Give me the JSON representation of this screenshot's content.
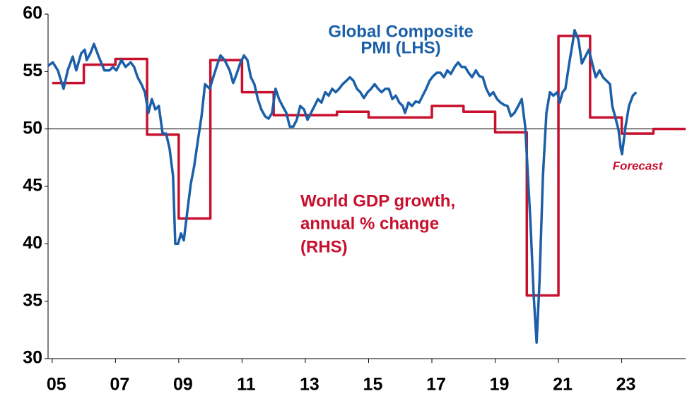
{
  "chart_data": {
    "type": "line",
    "xlim": [
      2004.87,
      2025.02
    ],
    "ylim": [
      30,
      60
    ],
    "yticks": [
      30,
      35,
      40,
      45,
      50,
      55,
      60
    ],
    "xticks": [
      {
        "value": 2005,
        "label": "05"
      },
      {
        "value": 2007,
        "label": "07"
      },
      {
        "value": 2009,
        "label": "09"
      },
      {
        "value": 2011,
        "label": "11"
      },
      {
        "value": 2013,
        "label": "13"
      },
      {
        "value": 2015,
        "label": "15"
      },
      {
        "value": 2017,
        "label": "17"
      },
      {
        "value": 2019,
        "label": "19"
      },
      {
        "value": 2021,
        "label": "21"
      },
      {
        "value": 2023,
        "label": "23"
      }
    ],
    "reference_line": 50,
    "annotations": [
      {
        "text": "Global Composite",
        "color": "#1a5fa8"
      },
      {
        "text": "PMI (LHS)",
        "color": "#1a5fa8"
      },
      {
        "text": "World GDP growth,",
        "color": "#c8102e"
      },
      {
        "text": "annual % change",
        "color": "#c8102e"
      },
      {
        "text": "(RHS)",
        "color": "#c8102e"
      },
      {
        "text": "Forecast",
        "color": "#c8102e"
      }
    ],
    "series": [
      {
        "name": "Global Composite PMI (LHS)",
        "color": "#1a5fa8",
        "x": [
          2004.87,
          2005.02,
          2005.18,
          2005.36,
          2005.49,
          2005.65,
          2005.76,
          2005.92,
          2006.03,
          2006.09,
          2006.21,
          2006.32,
          2006.47,
          2006.65,
          2006.81,
          2006.92,
          2007.03,
          2007.19,
          2007.32,
          2007.48,
          2007.59,
          2007.7,
          2007.82,
          2007.93,
          2008.04,
          2008.15,
          2008.26,
          2008.37,
          2008.49,
          2008.6,
          2008.71,
          2008.82,
          2008.89,
          2008.98,
          2009.07,
          2009.16,
          2009.27,
          2009.38,
          2009.49,
          2009.6,
          2009.72,
          2009.83,
          2009.98,
          2010.09,
          2010.23,
          2010.32,
          2010.45,
          2010.61,
          2010.72,
          2010.83,
          2010.94,
          2011.06,
          2011.17,
          2011.28,
          2011.39,
          2011.5,
          2011.61,
          2011.73,
          2011.84,
          2011.95,
          2012.06,
          2012.17,
          2012.28,
          2012.4,
          2012.51,
          2012.62,
          2012.73,
          2012.84,
          2012.96,
          2013.07,
          2013.18,
          2013.29,
          2013.4,
          2013.51,
          2013.63,
          2013.74,
          2013.85,
          2013.96,
          2014.07,
          2014.18,
          2014.3,
          2014.41,
          2014.52,
          2014.63,
          2014.74,
          2014.85,
          2014.97,
          2015.08,
          2015.19,
          2015.3,
          2015.41,
          2015.53,
          2015.64,
          2015.75,
          2015.86,
          2015.97,
          2016.08,
          2016.15,
          2016.26,
          2016.37,
          2016.49,
          2016.6,
          2016.71,
          2016.82,
          2016.93,
          2017.04,
          2017.16,
          2017.27,
          2017.38,
          2017.49,
          2017.6,
          2017.72,
          2017.83,
          2017.94,
          2018.05,
          2018.16,
          2018.27,
          2018.39,
          2018.5,
          2018.61,
          2018.72,
          2018.83,
          2018.94,
          2019.06,
          2019.17,
          2019.28,
          2019.39,
          2019.5,
          2019.61,
          2019.73,
          2019.84,
          2019.95,
          2020.11,
          2020.22,
          2020.31,
          2020.4,
          2020.51,
          2020.62,
          2020.73,
          2020.84,
          2020.96,
          2021.04,
          2021.13,
          2021.22,
          2021.34,
          2021.45,
          2021.51,
          2021.63,
          2021.74,
          2021.85,
          2021.96,
          2022.07,
          2022.18,
          2022.3,
          2022.41,
          2022.52,
          2022.63,
          2022.7,
          2022.79,
          2022.9,
          2022.97,
          2023.01,
          2023.12,
          2023.23,
          2023.35,
          2023.46
        ],
        "values": [
          55.5,
          55.8,
          55.1,
          53.5,
          55.1,
          56.3,
          55.1,
          56.6,
          56.9,
          56.0,
          56.6,
          57.4,
          56.3,
          55.1,
          55.1,
          55.4,
          55.1,
          56.0,
          55.4,
          55.8,
          55.4,
          54.5,
          53.9,
          53.2,
          51.4,
          52.6,
          51.7,
          52.0,
          49.6,
          49.6,
          48.3,
          45.9,
          40.0,
          40.0,
          40.9,
          40.3,
          42.8,
          45.2,
          46.8,
          48.9,
          51.1,
          53.9,
          53.5,
          54.5,
          55.7,
          56.4,
          56.0,
          55.1,
          54.0,
          54.8,
          55.7,
          56.4,
          56.0,
          54.5,
          53.9,
          52.6,
          51.7,
          51.1,
          50.9,
          51.4,
          53.5,
          52.6,
          52.0,
          51.4,
          50.2,
          50.2,
          50.8,
          52.0,
          51.7,
          50.8,
          51.4,
          52.0,
          52.6,
          52.3,
          53.2,
          52.9,
          53.5,
          53.2,
          53.5,
          53.9,
          54.2,
          54.5,
          54.2,
          53.5,
          53.2,
          52.7,
          53.2,
          53.5,
          53.9,
          53.5,
          53.2,
          53.5,
          53.5,
          52.6,
          52.9,
          52.3,
          52.0,
          51.4,
          52.3,
          52.0,
          52.4,
          52.3,
          52.9,
          53.5,
          54.2,
          54.6,
          54.9,
          54.9,
          54.5,
          55.1,
          54.8,
          55.4,
          55.8,
          55.4,
          55.4,
          54.9,
          54.5,
          55.1,
          54.6,
          54.5,
          53.5,
          52.9,
          53.2,
          52.6,
          52.3,
          52.1,
          52.0,
          51.1,
          51.4,
          52.0,
          52.6,
          50.2,
          42.2,
          35.4,
          31.4,
          36.6,
          45.9,
          51.4,
          53.2,
          52.9,
          53.2,
          52.3,
          53.2,
          53.5,
          55.7,
          57.5,
          58.6,
          57.8,
          55.7,
          56.3,
          56.9,
          55.7,
          54.5,
          55.1,
          54.5,
          54.2,
          53.9,
          52.0,
          51.1,
          49.9,
          48.3,
          47.8,
          50.2,
          52.0,
          52.9,
          53.2
        ]
      },
      {
        "name": "World GDP growth, annual % change (RHS)",
        "color": "#c8102e",
        "step": true,
        "x": [
          2005,
          2006,
          2007,
          2008,
          2009,
          2010,
          2011,
          2012,
          2013,
          2014,
          2015,
          2016,
          2017,
          2018,
          2019,
          2020,
          2021,
          2022,
          2023,
          2024,
          2025
        ],
        "values": [
          54.0,
          55.6,
          56.1,
          49.5,
          42.2,
          56.0,
          53.2,
          51.2,
          51.2,
          51.5,
          51.0,
          51.0,
          52.0,
          51.5,
          49.7,
          35.5,
          58.1,
          51.0,
          49.6,
          50.0,
          50.0
        ]
      }
    ]
  }
}
